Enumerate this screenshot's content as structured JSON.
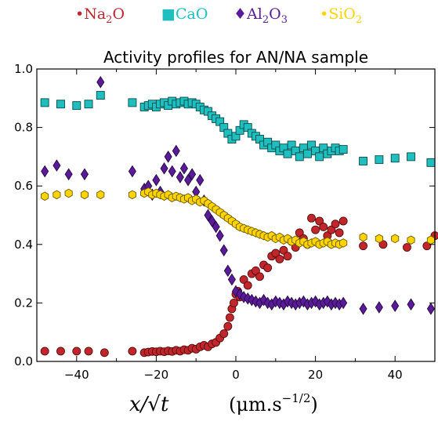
{
  "chart_data": {
    "type": "scatter",
    "title": "Activity profiles for AN/NA sample",
    "xlabel": "x/√t",
    "xlabel_unit": "(μm.s",
    "xlabel_unit_exp": "−1/2",
    "xlabel_unit_close": ")",
    "ylabel": "",
    "xlim": [
      -50,
      50
    ],
    "ylim": [
      0.0,
      1.0
    ],
    "x_ticks": [
      -40,
      -20,
      0,
      20,
      40
    ],
    "x_tick_labels": [
      "−40",
      "−20",
      "0",
      "20",
      "40"
    ],
    "y_ticks": [
      0.0,
      0.2,
      0.4,
      0.6,
      0.8,
      1.0
    ],
    "y_tick_labels": [
      "0.0",
      "0.2",
      "0.4",
      "0.6",
      "0.8",
      "1.0"
    ],
    "grid": false,
    "legend_placement": "top, outside plot",
    "series": [
      {
        "name": "Na2O",
        "legend_marker": "•",
        "legend_text": "Na",
        "legend_sub": "2",
        "legend_tail": "O",
        "marker": "circle",
        "color": "#c0272d",
        "edge": "#5a0a0a",
        "points": [
          [
            -48,
            0.035
          ],
          [
            -44,
            0.035
          ],
          [
            -40,
            0.035
          ],
          [
            -37,
            0.035
          ],
          [
            -33,
            0.03
          ],
          [
            -26,
            0.035
          ],
          [
            -23,
            0.03
          ],
          [
            -22,
            0.032
          ],
          [
            -21,
            0.034
          ],
          [
            -20,
            0.033
          ],
          [
            -19,
            0.035
          ],
          [
            -18,
            0.033
          ],
          [
            -17,
            0.036
          ],
          [
            -16,
            0.034
          ],
          [
            -15,
            0.038
          ],
          [
            -14,
            0.035
          ],
          [
            -13,
            0.04
          ],
          [
            -12,
            0.038
          ],
          [
            -11,
            0.045
          ],
          [
            -10,
            0.042
          ],
          [
            -9,
            0.05
          ],
          [
            -8,
            0.055
          ],
          [
            -7,
            0.05
          ],
          [
            -6,
            0.06
          ],
          [
            -5,
            0.065
          ],
          [
            -4,
            0.08
          ],
          [
            -3,
            0.095
          ],
          [
            -2,
            0.12
          ],
          [
            -1.5,
            0.15
          ],
          [
            -1,
            0.18
          ],
          [
            -0.5,
            0.2
          ],
          [
            0,
            0.23
          ],
          [
            0.5,
            0.24
          ],
          [
            1,
            0.22
          ],
          [
            2,
            0.28
          ],
          [
            3,
            0.26
          ],
          [
            4,
            0.3
          ],
          [
            5,
            0.31
          ],
          [
            6,
            0.29
          ],
          [
            7,
            0.33
          ],
          [
            8,
            0.32
          ],
          [
            9,
            0.36
          ],
          [
            10,
            0.37
          ],
          [
            11,
            0.35
          ],
          [
            12,
            0.38
          ],
          [
            13,
            0.36
          ],
          [
            14,
            0.41
          ],
          [
            15,
            0.39
          ],
          [
            16,
            0.44
          ],
          [
            17,
            0.42
          ],
          [
            18,
            0.4
          ],
          [
            19,
            0.49
          ],
          [
            20,
            0.45
          ],
          [
            21,
            0.48
          ],
          [
            22,
            0.46
          ],
          [
            23,
            0.43
          ],
          [
            24,
            0.45
          ],
          [
            25,
            0.47
          ],
          [
            26,
            0.44
          ],
          [
            27,
            0.48
          ],
          [
            32,
            0.395
          ],
          [
            37,
            0.4
          ],
          [
            43,
            0.39
          ],
          [
            48,
            0.395
          ],
          [
            50,
            0.43
          ]
        ]
      },
      {
        "name": "CaO",
        "legend_marker": "■",
        "legend_text": "CaO",
        "legend_sub": "",
        "legend_tail": "",
        "marker": "square",
        "color": "#1fbfbf",
        "edge": "#0a4a4a",
        "points": [
          [
            -48,
            0.885
          ],
          [
            -44,
            0.88
          ],
          [
            -40,
            0.875
          ],
          [
            -37,
            0.88
          ],
          [
            -34,
            0.91
          ],
          [
            -26,
            0.885
          ],
          [
            -23,
            0.87
          ],
          [
            -22,
            0.875
          ],
          [
            -21,
            0.88
          ],
          [
            -20,
            0.87
          ],
          [
            -19,
            0.88
          ],
          [
            -18,
            0.885
          ],
          [
            -17,
            0.875
          ],
          [
            -16,
            0.89
          ],
          [
            -15,
            0.88
          ],
          [
            -14,
            0.885
          ],
          [
            -13,
            0.89
          ],
          [
            -12,
            0.88
          ],
          [
            -11,
            0.885
          ],
          [
            -10,
            0.88
          ],
          [
            -9,
            0.87
          ],
          [
            -8,
            0.86
          ],
          [
            -7,
            0.855
          ],
          [
            -6,
            0.84
          ],
          [
            -5,
            0.83
          ],
          [
            -4,
            0.82
          ],
          [
            -3,
            0.8
          ],
          [
            -2,
            0.78
          ],
          [
            -1,
            0.76
          ],
          [
            0,
            0.77
          ],
          [
            1,
            0.79
          ],
          [
            2,
            0.81
          ],
          [
            3,
            0.8
          ],
          [
            4,
            0.78
          ],
          [
            5,
            0.77
          ],
          [
            6,
            0.76
          ],
          [
            7,
            0.74
          ],
          [
            8,
            0.75
          ],
          [
            9,
            0.73
          ],
          [
            10,
            0.74
          ],
          [
            11,
            0.72
          ],
          [
            12,
            0.73
          ],
          [
            13,
            0.71
          ],
          [
            14,
            0.74
          ],
          [
            15,
            0.72
          ],
          [
            16,
            0.7
          ],
          [
            17,
            0.73
          ],
          [
            18,
            0.71
          ],
          [
            19,
            0.74
          ],
          [
            20,
            0.72
          ],
          [
            21,
            0.7
          ],
          [
            22,
            0.73
          ],
          [
            23,
            0.71
          ],
          [
            24,
            0.72
          ],
          [
            25,
            0.73
          ],
          [
            26,
            0.72
          ],
          [
            27,
            0.725
          ],
          [
            32,
            0.685
          ],
          [
            36,
            0.69
          ],
          [
            40,
            0.695
          ],
          [
            44,
            0.7
          ],
          [
            49,
            0.68
          ]
        ]
      },
      {
        "name": "Al2O3",
        "legend_marker": "♦",
        "legend_text": "Al",
        "legend_sub": "2",
        "legend_tail": "O",
        "legend_sub2": "3",
        "marker": "diamond",
        "color": "#5b1a9a",
        "edge": "#220a40",
        "points": [
          [
            -48,
            0.65
          ],
          [
            -45,
            0.67
          ],
          [
            -42,
            0.64
          ],
          [
            -38,
            0.64
          ],
          [
            -34,
            0.955
          ],
          [
            -26,
            0.65
          ],
          [
            -23,
            0.59
          ],
          [
            -22,
            0.6
          ],
          [
            -21,
            0.57
          ],
          [
            -20,
            0.62
          ],
          [
            -19,
            0.58
          ],
          [
            -18,
            0.66
          ],
          [
            -17,
            0.7
          ],
          [
            -16,
            0.65
          ],
          [
            -15,
            0.72
          ],
          [
            -14,
            0.63
          ],
          [
            -13,
            0.66
          ],
          [
            -12,
            0.62
          ],
          [
            -11,
            0.64
          ],
          [
            -10,
            0.58
          ],
          [
            -9,
            0.62
          ],
          [
            -8,
            0.55
          ],
          [
            -7,
            0.5
          ],
          [
            -6,
            0.48
          ],
          [
            -5,
            0.46
          ],
          [
            -4,
            0.43
          ],
          [
            -3,
            0.38
          ],
          [
            -2,
            0.31
          ],
          [
            -1,
            0.28
          ],
          [
            0,
            0.24
          ],
          [
            1,
            0.23
          ],
          [
            2,
            0.22
          ],
          [
            3,
            0.215
          ],
          [
            4,
            0.21
          ],
          [
            5,
            0.205
          ],
          [
            6,
            0.2
          ],
          [
            7,
            0.21
          ],
          [
            8,
            0.2
          ],
          [
            9,
            0.195
          ],
          [
            10,
            0.205
          ],
          [
            11,
            0.2
          ],
          [
            12,
            0.195
          ],
          [
            13,
            0.205
          ],
          [
            14,
            0.2
          ],
          [
            15,
            0.195
          ],
          [
            16,
            0.2
          ],
          [
            17,
            0.205
          ],
          [
            18,
            0.195
          ],
          [
            19,
            0.2
          ],
          [
            20,
            0.205
          ],
          [
            21,
            0.195
          ],
          [
            22,
            0.2
          ],
          [
            23,
            0.205
          ],
          [
            24,
            0.195
          ],
          [
            25,
            0.2
          ],
          [
            26,
            0.195
          ],
          [
            27,
            0.2
          ],
          [
            32,
            0.18
          ],
          [
            36,
            0.185
          ],
          [
            40,
            0.19
          ],
          [
            44,
            0.195
          ],
          [
            49,
            0.18
          ]
        ]
      },
      {
        "name": "SiO2",
        "legend_marker": "•",
        "legend_text": "SiO",
        "legend_sub": "2",
        "legend_tail": "",
        "marker": "hexagon",
        "color": "#ffd400",
        "edge": "#6a5a00",
        "points": [
          [
            -48,
            0.565
          ],
          [
            -45,
            0.57
          ],
          [
            -42,
            0.575
          ],
          [
            -38,
            0.57
          ],
          [
            -34,
            0.57
          ],
          [
            -26,
            0.57
          ],
          [
            -23,
            0.575
          ],
          [
            -22,
            0.58
          ],
          [
            -21,
            0.57
          ],
          [
            -20,
            0.575
          ],
          [
            -19,
            0.57
          ],
          [
            -18,
            0.565
          ],
          [
            -17,
            0.57
          ],
          [
            -16,
            0.56
          ],
          [
            -15,
            0.565
          ],
          [
            -14,
            0.56
          ],
          [
            -13,
            0.555
          ],
          [
            -12,
            0.56
          ],
          [
            -11,
            0.55
          ],
          [
            -10,
            0.555
          ],
          [
            -9,
            0.545
          ],
          [
            -8,
            0.55
          ],
          [
            -7,
            0.54
          ],
          [
            -6,
            0.53
          ],
          [
            -5,
            0.52
          ],
          [
            -4,
            0.51
          ],
          [
            -3,
            0.5
          ],
          [
            -2,
            0.49
          ],
          [
            -1,
            0.48
          ],
          [
            0,
            0.47
          ],
          [
            1,
            0.46
          ],
          [
            2,
            0.455
          ],
          [
            3,
            0.45
          ],
          [
            4,
            0.445
          ],
          [
            5,
            0.44
          ],
          [
            6,
            0.435
          ],
          [
            7,
            0.43
          ],
          [
            8,
            0.425
          ],
          [
            9,
            0.43
          ],
          [
            10,
            0.42
          ],
          [
            11,
            0.425
          ],
          [
            12,
            0.415
          ],
          [
            13,
            0.42
          ],
          [
            14,
            0.41
          ],
          [
            15,
            0.415
          ],
          [
            16,
            0.405
          ],
          [
            17,
            0.41
          ],
          [
            18,
            0.4
          ],
          [
            19,
            0.405
          ],
          [
            20,
            0.41
          ],
          [
            21,
            0.4
          ],
          [
            22,
            0.405
          ],
          [
            23,
            0.41
          ],
          [
            24,
            0.4
          ],
          [
            25,
            0.405
          ],
          [
            26,
            0.4
          ],
          [
            27,
            0.405
          ],
          [
            32,
            0.425
          ],
          [
            36,
            0.42
          ],
          [
            40,
            0.42
          ],
          [
            44,
            0.415
          ],
          [
            49,
            0.415
          ]
        ]
      }
    ]
  }
}
